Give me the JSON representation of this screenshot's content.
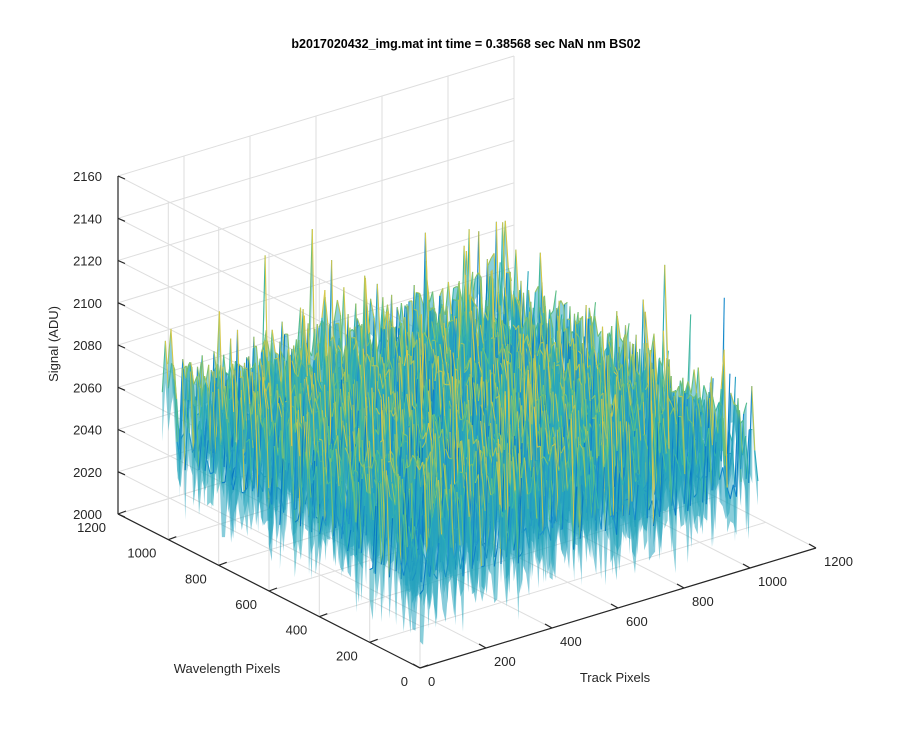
{
  "chart_data": {
    "type": "surface",
    "title": "b2017020432_img.mat int time = 0.38568 sec  NaN nm BS02",
    "xlabel": "Track Pixels",
    "ylabel": "Wavelength Pixels",
    "zlabel": "Signal (ADU)",
    "xlim": [
      0,
      1200
    ],
    "ylim": [
      0,
      1200
    ],
    "zlim": [
      2000,
      2160
    ],
    "x_ticks": [
      "0",
      "200",
      "400",
      "600",
      "800",
      "1000",
      "1200"
    ],
    "y_ticks": [
      "0",
      "200",
      "400",
      "600",
      "800",
      "1000",
      "1200"
    ],
    "z_ticks": [
      "2000",
      "2020",
      "2040",
      "2060",
      "2080",
      "2100",
      "2120",
      "2140",
      "2160"
    ],
    "data_extent": {
      "track_pixels": [
        0,
        1024
      ],
      "wavelength_pixels": [
        0,
        1024
      ]
    },
    "baseline_signal": 2060,
    "noise_peak_to_peak": 60,
    "colormap": [
      "#0072bd",
      "#1c8fd0",
      "#2fb3b0",
      "#67c07a",
      "#d6c84a"
    ],
    "grid": true,
    "view": "3d-isometric"
  }
}
